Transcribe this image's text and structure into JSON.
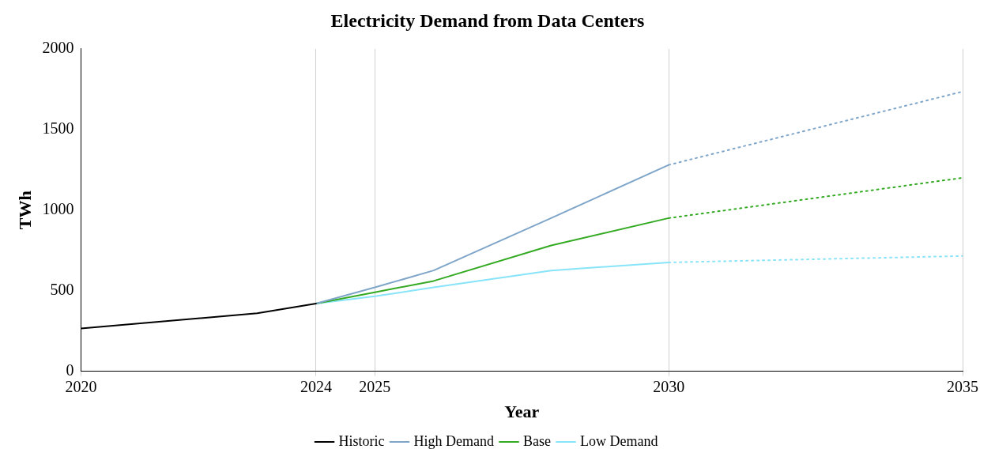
{
  "chart_data": {
    "type": "line",
    "title": "Electricity Demand from Data Centers",
    "xlabel": "Year",
    "ylabel": "TWh",
    "xlim": [
      2020,
      2035
    ],
    "xticks": [
      2020,
      2024,
      2025,
      2030,
      2035
    ],
    "ylim": [
      0,
      2000
    ],
    "yticks": [
      0,
      500,
      1000,
      1500,
      2000
    ],
    "grid": "x",
    "legend": "bottom",
    "marker": "none",
    "series": [
      {
        "name": "Historic",
        "color": "#000000",
        "x": [
          2020,
          2023,
          2024
        ],
        "values": [
          265,
          360,
          420
        ],
        "line_style": "solid"
      },
      {
        "name": "High Demand",
        "color": "#7fa6c9",
        "x": [
          2024,
          2025,
          2026,
          2028,
          2030
        ],
        "values": [
          420,
          520,
          625,
          950,
          1280
        ],
        "line_style": "solid"
      },
      {
        "name": "Base",
        "color": "#33aa22",
        "x": [
          2024,
          2025,
          2026,
          2028,
          2030
        ],
        "values": [
          420,
          490,
          560,
          780,
          950
        ],
        "line_style": "solid"
      },
      {
        "name": "Low Demand",
        "color": "#88e4f8",
        "x": [
          2024,
          2025,
          2026,
          2028,
          2030
        ],
        "values": [
          420,
          465,
          520,
          625,
          675
        ],
        "line_style": "solid"
      },
      {
        "color": "#7fa6c9",
        "x": [
          2030,
          2035
        ],
        "values": [
          1280,
          1735
        ],
        "line_style": "dotted"
      },
      {
        "color": "#33aa22",
        "x": [
          2030,
          2035
        ],
        "values": [
          950,
          1200
        ],
        "line_style": "dotted"
      },
      {
        "color": "#88e4f8",
        "x": [
          2030,
          2035
        ],
        "values": [
          675,
          715
        ],
        "line_style": "dotted"
      }
    ]
  }
}
